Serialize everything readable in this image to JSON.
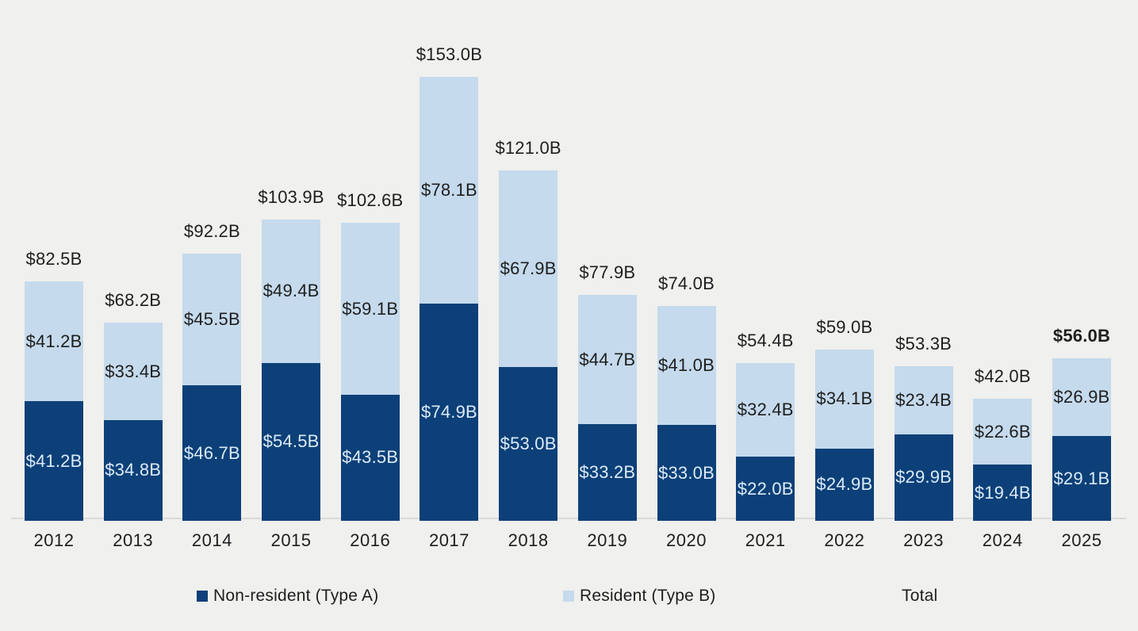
{
  "colors": {
    "background": "#f0f0ee",
    "non_resident": "#0d4078",
    "resident": "#c5daec",
    "axis_line": "#d9d9d8",
    "text_dark": "#1e1e1e",
    "text_on_dark": "#dcebf8"
  },
  "chart_data": {
    "type": "bar",
    "stacked": true,
    "title": "",
    "xlabel": "",
    "ylabel": "",
    "grid": false,
    "legend_position": "bottom",
    "ylim": [
      0,
      179.5
    ],
    "categories": [
      "2012",
      "2013",
      "2014",
      "2015",
      "2016",
      "2017",
      "2018",
      "2019",
      "2020",
      "2021",
      "2022",
      "2023",
      "2024",
      "2025"
    ],
    "series": [
      {
        "name": "Non-resident (Type A)",
        "values": [
          41.2,
          34.8,
          46.7,
          54.5,
          43.5,
          74.9,
          53.0,
          33.2,
          33.0,
          22.0,
          24.9,
          29.9,
          19.4,
          29.1
        ],
        "labels": [
          "$41.2B",
          "$34.8B",
          "$46.7B",
          "$54.5B",
          "$43.5B",
          "$74.9B",
          "$53.0B",
          "$33.2B",
          "$33.0B",
          "$22.0B",
          "$24.9B",
          "$29.9B",
          "$19.4B",
          "$29.1B"
        ]
      },
      {
        "name": "Resident (Type B)",
        "values": [
          41.2,
          33.4,
          45.5,
          49.4,
          59.1,
          78.1,
          67.9,
          44.7,
          41.0,
          32.4,
          34.1,
          23.4,
          22.6,
          26.9
        ],
        "labels": [
          "$41.2B",
          "$33.4B",
          "$45.5B",
          "$49.4B",
          "$59.1B",
          "$78.1B",
          "$67.9B",
          "$44.7B",
          "$41.0B",
          "$32.4B",
          "$34.1B",
          "$23.4B",
          "$22.6B",
          "$26.9B"
        ]
      }
    ],
    "totals": {
      "name": "Total",
      "values": [
        82.5,
        68.2,
        92.2,
        103.9,
        102.6,
        153.0,
        121.0,
        77.9,
        74.0,
        54.4,
        59.0,
        53.3,
        42.0,
        56.0
      ],
      "labels": [
        "$82.5B",
        "$68.2B",
        "$92.2B",
        "$103.9B",
        "$102.6B",
        "$153.0B",
        "$121.0B",
        "$77.9B",
        "$74.0B",
        "$54.4B",
        "$59.0B",
        "$53.3B",
        "$42.0B",
        "$56.0B"
      ],
      "bold_index": 13
    }
  },
  "legend": {
    "items": [
      {
        "label": "Non-resident (Type A)",
        "swatch_color_key": "non_resident"
      },
      {
        "label": "Resident (Type B)",
        "swatch_color_key": "resident"
      },
      {
        "label": "Total",
        "swatch_color_key": null
      }
    ]
  }
}
